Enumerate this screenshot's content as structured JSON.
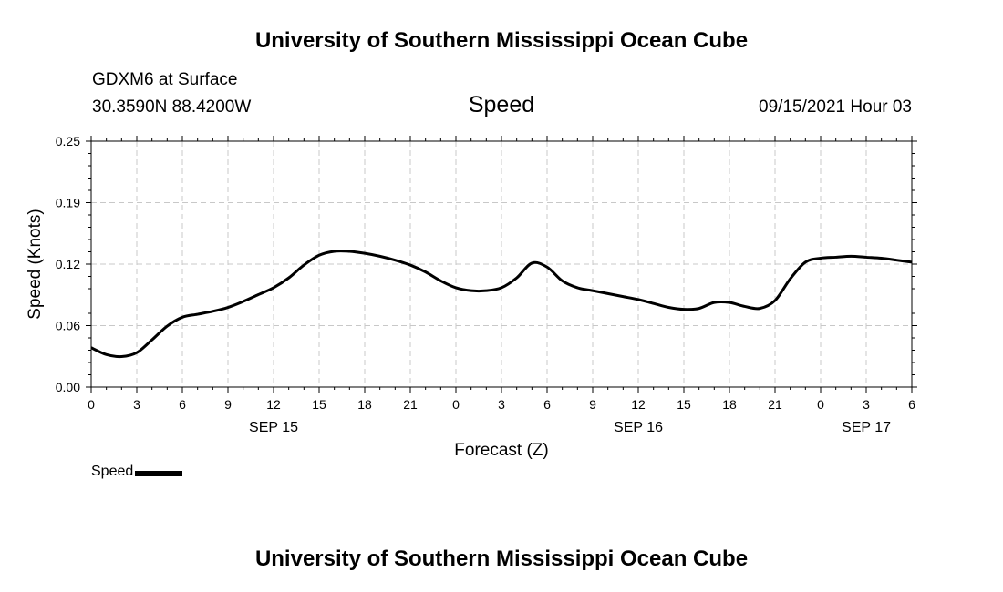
{
  "header": {
    "banner_top": "University of Southern Mississippi Ocean Cube",
    "banner_bottom": "University of Southern Mississippi Ocean Cube",
    "station": "GDXM6 at Surface",
    "coordinates": "30.3590N  88.4200W",
    "run_time": "09/15/2021 Hour 03"
  },
  "legend": {
    "label": "Speed"
  },
  "chart_data": {
    "type": "line",
    "title": "Speed",
    "xlabel": "Forecast (Z)",
    "ylabel": "Speed (Knots)",
    "ylim": [
      0,
      0.25
    ],
    "y_ticks": [
      "0.00",
      "0.06",
      "0.12",
      "0.19",
      "0.25"
    ],
    "y_tick_values": [
      0,
      0.0625,
      0.125,
      0.1875,
      0.25
    ],
    "x_range_hours": [
      0,
      54
    ],
    "x_ticks": [
      "0",
      "3",
      "6",
      "9",
      "12",
      "15",
      "18",
      "21",
      "0",
      "3",
      "6",
      "9",
      "12",
      "15",
      "18",
      "21",
      "0",
      "3",
      "6"
    ],
    "date_labels": [
      {
        "label": "SEP 15",
        "hour": 12
      },
      {
        "label": "SEP 16",
        "hour": 36
      },
      {
        "label": "SEP 17",
        "hour": 51
      }
    ],
    "grid": true,
    "series": [
      {
        "name": "Speed",
        "color": "#000000",
        "x": [
          0,
          1,
          2,
          3,
          4,
          5,
          6,
          7,
          8,
          9,
          10,
          11,
          12,
          13,
          14,
          15,
          16,
          17,
          18,
          19,
          20,
          21,
          22,
          23,
          24,
          25,
          26,
          27,
          28,
          29,
          30,
          31,
          32,
          33,
          34,
          35,
          36,
          37,
          38,
          39,
          40,
          41,
          42,
          43,
          44,
          45,
          46,
          47,
          48,
          49,
          50,
          51,
          52,
          53,
          54
        ],
        "values": [
          0.04,
          0.033,
          0.031,
          0.035,
          0.048,
          0.062,
          0.071,
          0.074,
          0.077,
          0.081,
          0.087,
          0.094,
          0.101,
          0.111,
          0.124,
          0.134,
          0.138,
          0.138,
          0.136,
          0.133,
          0.129,
          0.124,
          0.117,
          0.108,
          0.101,
          0.098,
          0.098,
          0.101,
          0.111,
          0.126,
          0.122,
          0.108,
          0.101,
          0.098,
          0.095,
          0.092,
          0.089,
          0.085,
          0.081,
          0.079,
          0.08,
          0.086,
          0.086,
          0.082,
          0.08,
          0.088,
          0.11,
          0.127,
          0.131,
          0.132,
          0.133,
          0.132,
          0.131,
          0.129,
          0.127
        ]
      }
    ]
  }
}
